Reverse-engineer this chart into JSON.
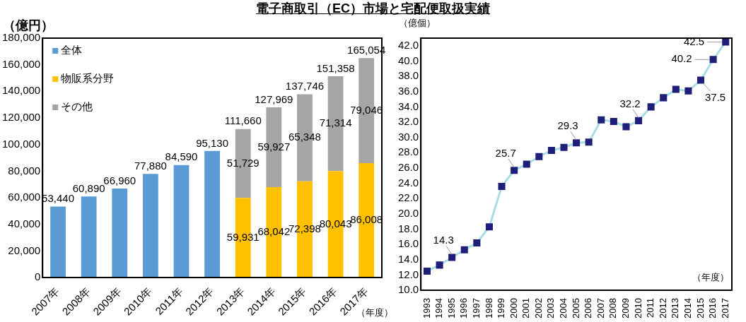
{
  "chart_data": [
    {
      "type": "bar",
      "title": "電子商取引（EC）市場と宅配便取扱実績",
      "ylabel": "（億円）",
      "annotations": [
        "（年度）"
      ],
      "stacked": true,
      "legend": "top left",
      "grid": false,
      "categories": [
        "2007年",
        "2008年",
        "2009年",
        "2010年",
        "2011年",
        "2012年",
        "2013年",
        "2014年",
        "2015年",
        "2016年",
        "2017年"
      ],
      "series": [
        {
          "name": "全体",
          "color": "#5b9bd5",
          "values": [
            53440,
            60890,
            66960,
            77880,
            84590,
            95130,
            null,
            null,
            null,
            null,
            null
          ],
          "value_labels": [
            "53,440",
            "60,890",
            "66,960",
            "77,880",
            "84,590",
            "95,130",
            null,
            null,
            null,
            null,
            null
          ]
        },
        {
          "name": "物販系分野",
          "color": "#ffc000",
          "values": [
            null,
            null,
            null,
            null,
            null,
            null,
            59931,
            68042,
            72398,
            80043,
            86008
          ],
          "value_labels": [
            null,
            null,
            null,
            null,
            null,
            null,
            "59,931",
            "68,042",
            "72,398",
            "80,043",
            "86,008"
          ]
        },
        {
          "name": "その他",
          "color": "#a5a5a5",
          "values": [
            null,
            null,
            null,
            null,
            null,
            null,
            51729,
            59927,
            65348,
            71314,
            79046
          ],
          "value_labels": [
            null,
            null,
            null,
            null,
            null,
            null,
            "51,729",
            "59,927",
            "65,348",
            "71,314",
            "79,046"
          ]
        }
      ],
      "totals": [
        null,
        null,
        null,
        null,
        null,
        null,
        "111,660",
        "127,969",
        "137,746",
        "151,358",
        "165,054"
      ],
      "ylim": [
        0,
        180000
      ],
      "yticks": [
        0,
        {
          "value": 20000,
          "label": "20,000"
        },
        {
          "value": 40000,
          "label": "40,000"
        },
        {
          "value": 60000,
          "label": "60,000"
        },
        {
          "value": 80000,
          "label": "80,000"
        },
        {
          "value": 100000,
          "label": "100,000"
        },
        {
          "value": 120000,
          "label": "120,000"
        },
        {
          "value": 140000,
          "label": "140,000"
        },
        {
          "value": 160000,
          "label": "160,000"
        },
        {
          "value": 180000,
          "label": "180,000"
        }
      ]
    },
    {
      "type": "line",
      "ylabel": "（億個）",
      "annotations": [
        "（年度）"
      ],
      "marker": "square",
      "grid": false,
      "categories": [
        "1993",
        "1994",
        "1995",
        "1996",
        "1997",
        "1998",
        "1999",
        "2000",
        "2001",
        "2002",
        "2003",
        "2004",
        "2005",
        "2006",
        "2007",
        "2008",
        "2009",
        "2010",
        "2011",
        "2012",
        "2013",
        "2014",
        "2015",
        "2016",
        "2017"
      ],
      "series": [
        {
          "color": "#a8dde3",
          "values": [
            12.5,
            13.3,
            14.3,
            15.3,
            16.2,
            18.3,
            23.6,
            25.7,
            26.5,
            27.5,
            28.3,
            28.7,
            29.3,
            29.4,
            32.3,
            32.1,
            31.4,
            32.2,
            34.0,
            35.2,
            36.3,
            36.1,
            37.5,
            40.2,
            42.5
          ],
          "value_labels": [
            null,
            null,
            "14.3",
            null,
            null,
            null,
            null,
            "25.7",
            null,
            null,
            null,
            null,
            "29.3",
            null,
            null,
            null,
            null,
            "32.2",
            null,
            null,
            null,
            null,
            "37.5",
            "40.2",
            "42.5"
          ]
        }
      ],
      "ylim": [
        10,
        43
      ],
      "yticks": [
        {
          "value": 10,
          "label": "10.0"
        },
        {
          "value": 12,
          "label": "12.0"
        },
        {
          "value": 14,
          "label": "14.0"
        },
        {
          "value": 16,
          "label": "16.0"
        },
        {
          "value": 18,
          "label": "18.0"
        },
        {
          "value": 20,
          "label": "20.0"
        },
        {
          "value": 22,
          "label": "22.0"
        },
        {
          "value": 24,
          "label": "24.0"
        },
        {
          "value": 26,
          "label": "26.0"
        },
        {
          "value": 28,
          "label": "28.0"
        },
        {
          "value": 30,
          "label": "30.0"
        },
        {
          "value": 32,
          "label": "32.0"
        },
        {
          "value": 34,
          "label": "34.0"
        },
        {
          "value": 36,
          "label": "36.0"
        },
        {
          "value": 38,
          "label": "38.0"
        },
        {
          "value": 40,
          "label": "40.0"
        },
        {
          "value": 42,
          "label": "42.0"
        }
      ]
    }
  ]
}
